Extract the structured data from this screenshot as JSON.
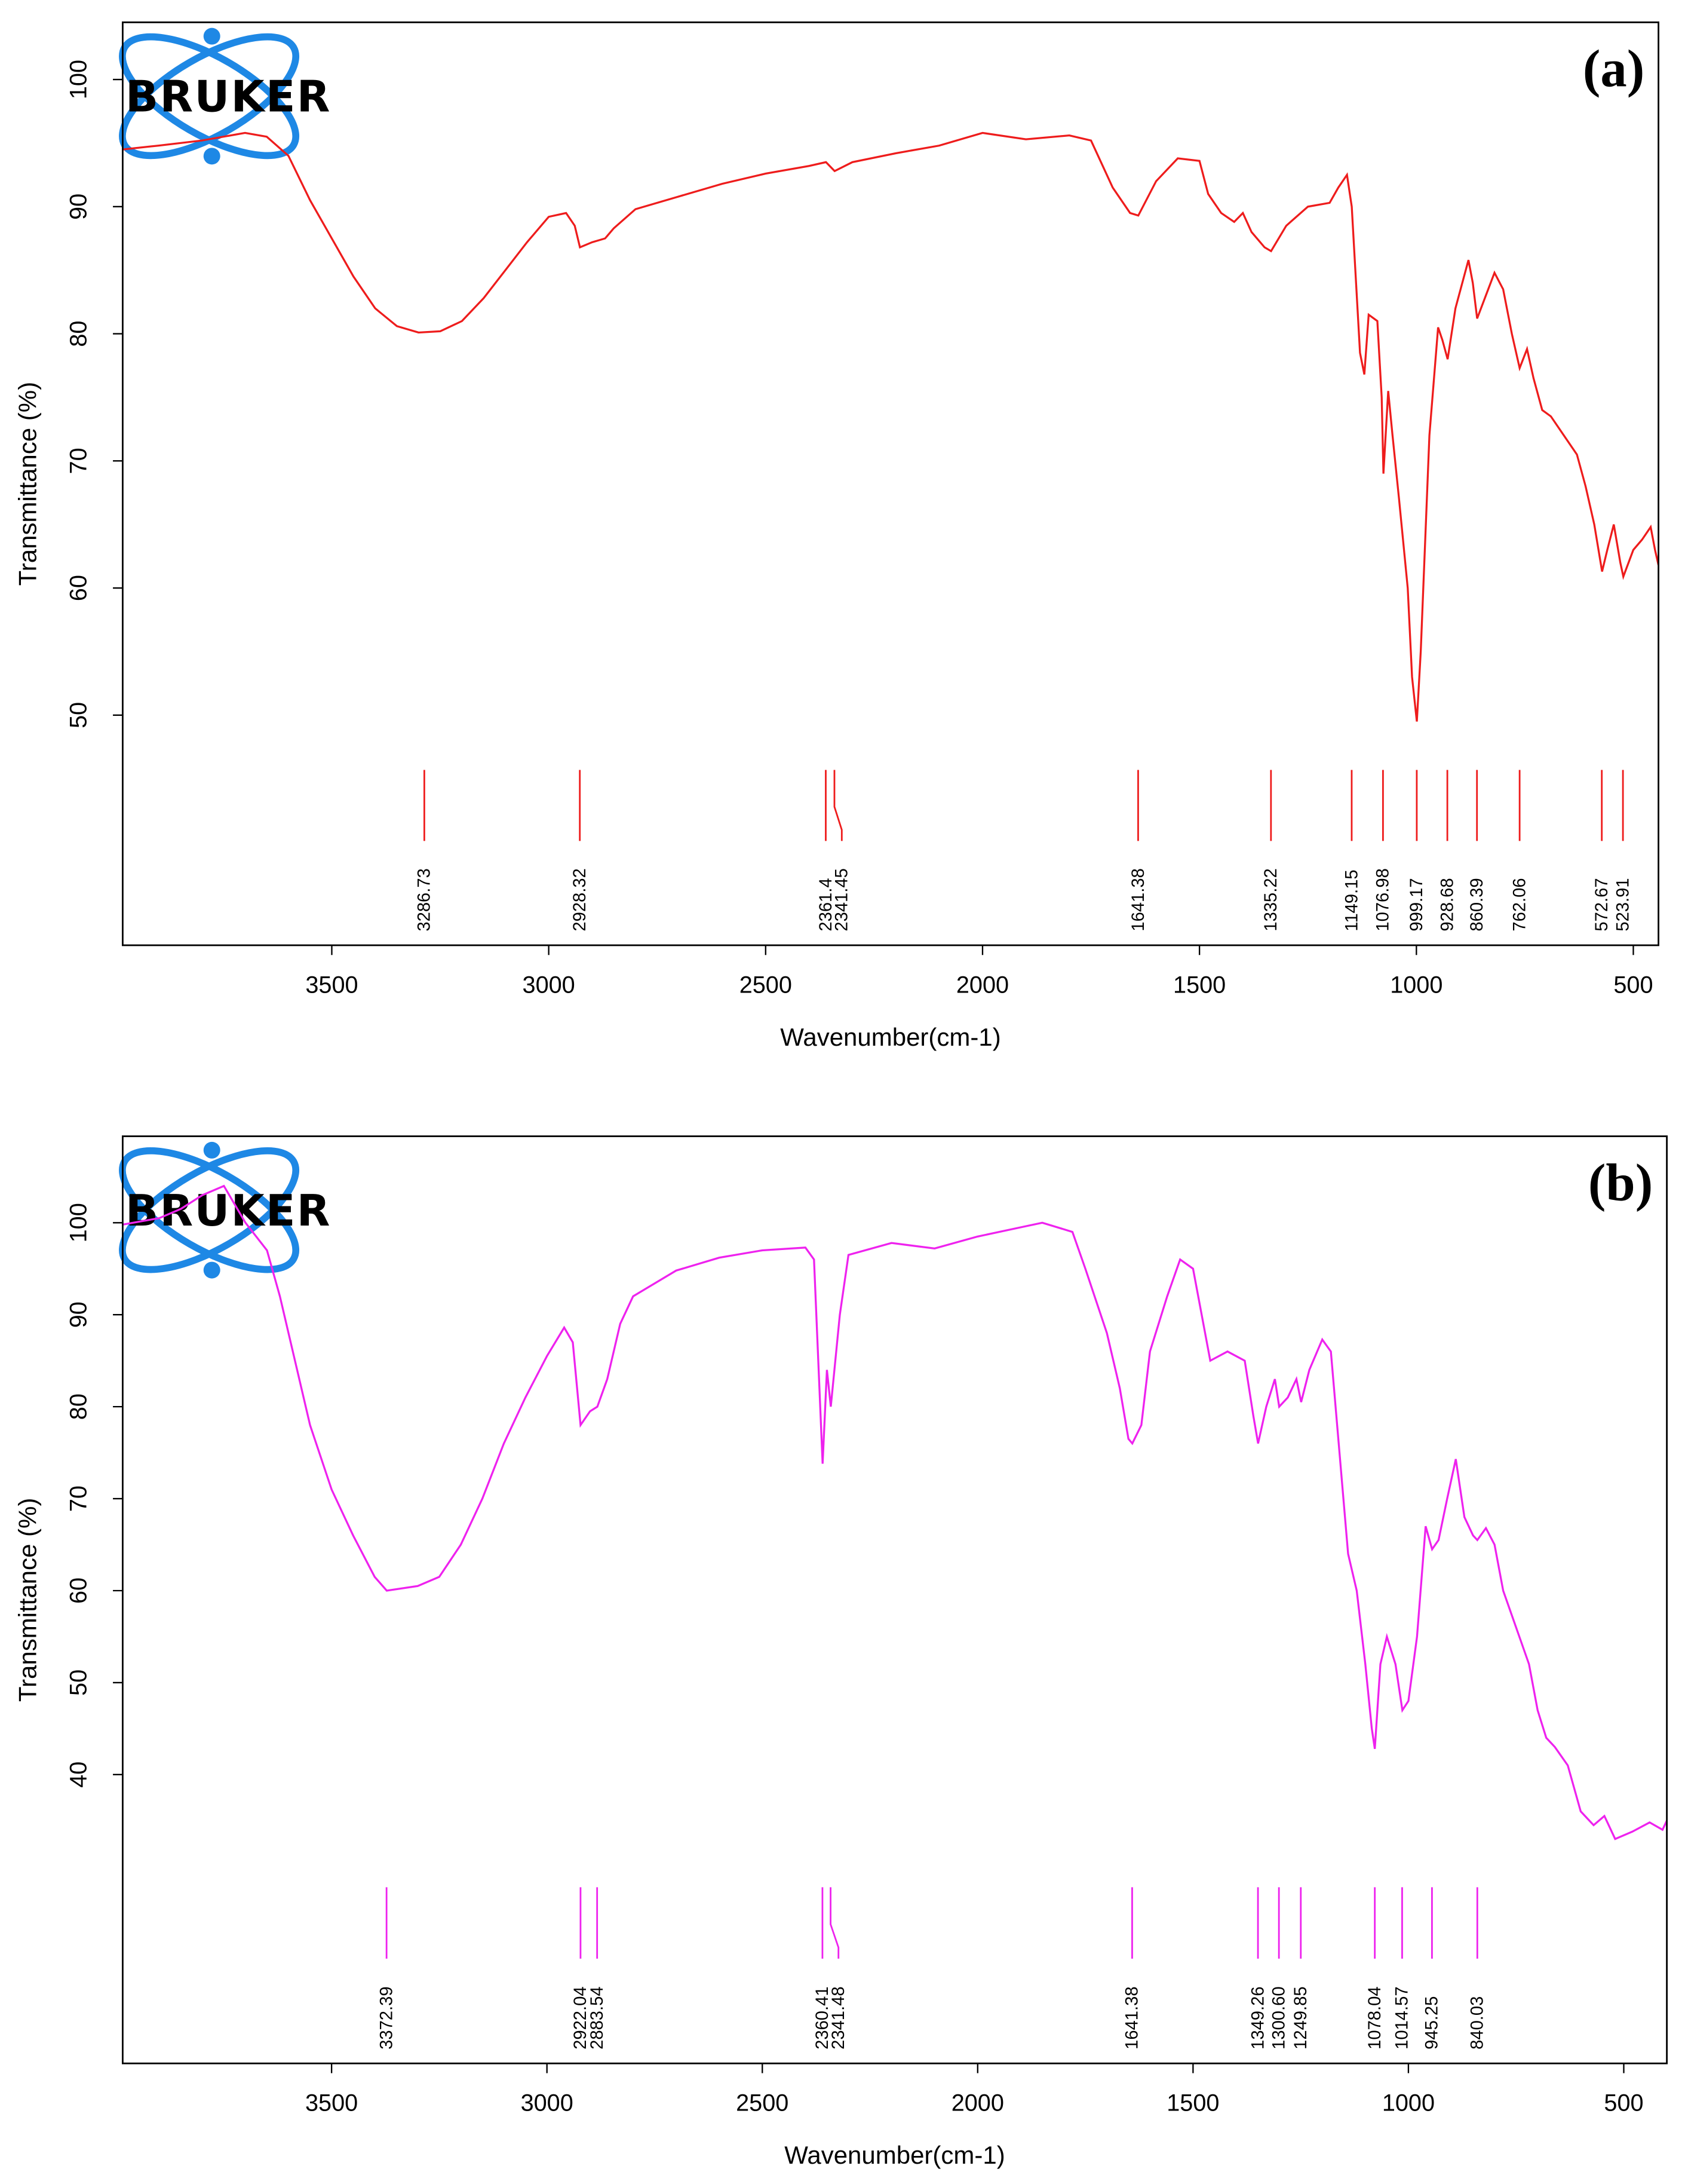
{
  "chart_data": [
    {
      "type": "line",
      "title": "(a)",
      "logo": "BRUKER",
      "x_label": "Wavenumber(cm-1)",
      "y_label": "Transmittance (%)",
      "color": "#ee1c1c",
      "xlim": [
        3982,
        442
      ],
      "ylim": [
        31.9,
        104.5
      ],
      "xticks": [
        3500,
        3000,
        2500,
        2000,
        1500,
        1000,
        500
      ],
      "yticks": [
        50,
        60,
        70,
        80,
        90,
        100
      ],
      "x": [
        3982,
        3900,
        3800,
        3700,
        3650,
        3600,
        3550,
        3500,
        3450,
        3400,
        3350,
        3300,
        3250,
        3200,
        3150,
        3100,
        3050,
        3000,
        2960,
        2940,
        2928,
        2900,
        2870,
        2850,
        2800,
        2700,
        2600,
        2500,
        2400,
        2361,
        2341,
        2300,
        2200,
        2100,
        2000,
        1900,
        1800,
        1750,
        1700,
        1660,
        1641,
        1600,
        1550,
        1500,
        1480,
        1450,
        1420,
        1400,
        1380,
        1350,
        1335,
        1300,
        1250,
        1200,
        1180,
        1160,
        1149,
        1130,
        1120,
        1110,
        1090,
        1080,
        1076,
        1065,
        1055,
        1040,
        1020,
        1010,
        999,
        990,
        970,
        950,
        940,
        928,
        910,
        880,
        870,
        860,
        840,
        820,
        800,
        780,
        762,
        745,
        730,
        710,
        690,
        660,
        630,
        610,
        590,
        572,
        560,
        545,
        530,
        523,
        500,
        480,
        460,
        450,
        442
      ],
      "values": [
        94.5,
        94.8,
        95.2,
        95.8,
        95.5,
        94,
        90.5,
        87.5,
        84.5,
        82,
        80.6,
        80.1,
        80.2,
        81,
        82.8,
        85,
        87.2,
        89.2,
        89.5,
        88.5,
        86.8,
        87.2,
        87.5,
        88.3,
        89.8,
        90.8,
        91.8,
        92.6,
        93.2,
        93.5,
        92.8,
        93.5,
        94.2,
        94.8,
        95.8,
        95.3,
        95.6,
        95.2,
        91.5,
        89.5,
        89.3,
        92,
        93.8,
        93.6,
        91,
        89.5,
        88.8,
        89.5,
        88,
        86.8,
        86.5,
        88.5,
        90,
        90.3,
        91.5,
        92.5,
        90,
        78.5,
        76.8,
        81.5,
        81,
        75,
        69,
        75.5,
        72,
        67,
        60,
        53,
        49.5,
        55,
        72,
        80.5,
        79.5,
        78,
        82,
        85.8,
        84,
        81.2,
        83,
        84.8,
        83.5,
        80,
        77.3,
        78.8,
        76.5,
        74,
        73.5,
        72,
        70.5,
        68,
        65,
        61.3,
        63,
        65,
        62,
        60.9,
        63,
        63.8,
        64.8,
        63,
        61.8
      ],
      "peaks": [
        3286.73,
        2928.32,
        2361.4,
        2341.45,
        1641.38,
        1335.22,
        1149.15,
        1076.98,
        999.17,
        928.68,
        860.39,
        762.06,
        572.67,
        523.91
      ]
    },
    {
      "type": "line",
      "title": "(b)",
      "logo": "BRUKER",
      "x_label": "Wavenumber(cm-1)",
      "y_label": "Transmittance (%)",
      "color": "#ee22ee",
      "xlim": [
        3985,
        400
      ],
      "ylim": [
        8.6,
        109.4
      ],
      "xticks": [
        3500,
        3000,
        2500,
        2000,
        1500,
        1000,
        500
      ],
      "yticks": [
        40,
        50,
        60,
        70,
        80,
        90,
        100
      ],
      "x": [
        3985,
        3900,
        3850,
        3800,
        3750,
        3700,
        3650,
        3620,
        3600,
        3580,
        3550,
        3500,
        3450,
        3400,
        3372,
        3300,
        3250,
        3200,
        3150,
        3100,
        3050,
        3000,
        2960,
        2940,
        2922,
        2900,
        2883,
        2860,
        2830,
        2800,
        2700,
        2600,
        2500,
        2400,
        2380,
        2360,
        2350,
        2341,
        2320,
        2300,
        2200,
        2100,
        2000,
        1900,
        1850,
        1780,
        1750,
        1700,
        1670,
        1650,
        1641,
        1620,
        1600,
        1560,
        1530,
        1500,
        1480,
        1460,
        1420,
        1380,
        1360,
        1349,
        1330,
        1310,
        1300,
        1280,
        1260,
        1249,
        1230,
        1200,
        1180,
        1160,
        1140,
        1120,
        1100,
        1085,
        1078,
        1065,
        1050,
        1030,
        1014,
        1000,
        980,
        960,
        945,
        930,
        910,
        890,
        870,
        850,
        840,
        820,
        800,
        780,
        750,
        720,
        700,
        680,
        660,
        630,
        600,
        570,
        545,
        520,
        480,
        440,
        410,
        400
      ],
      "values": [
        99.8,
        100.5,
        101.5,
        103,
        104,
        100,
        97,
        92,
        88,
        84,
        78,
        71,
        66,
        61.5,
        60,
        60.5,
        61.5,
        65,
        70,
        76,
        81,
        85.5,
        88.6,
        87,
        78,
        79.5,
        80,
        83,
        89,
        92,
        94.8,
        96.2,
        97,
        97.3,
        96,
        73.8,
        84,
        80,
        90,
        96.5,
        97.8,
        97.2,
        98.5,
        99.5,
        100,
        99,
        95,
        88,
        82,
        76.5,
        76,
        78,
        86,
        92,
        96,
        95,
        90,
        85,
        86,
        85,
        79,
        76,
        80,
        83,
        80,
        81,
        83,
        80.5,
        84,
        87.3,
        86,
        75,
        64,
        60,
        52,
        45,
        42.8,
        52,
        55,
        52,
        47,
        48,
        55,
        67,
        64.5,
        65.5,
        70,
        74.3,
        68,
        66,
        65.5,
        66.8,
        65,
        60,
        56,
        52,
        47,
        44,
        43,
        41,
        36,
        34.5,
        35.5,
        33,
        33.8,
        34.8,
        34,
        35
      ],
      "peaks": [
        3372.39,
        2922.04,
        2883.54,
        2360.41,
        2341.48,
        1641.38,
        1349.26,
        {
          "value": 1300.6,
          "label": "1300.60"
        },
        1249.85,
        1078.04,
        1014.57,
        945.25,
        840.03
      ]
    }
  ]
}
